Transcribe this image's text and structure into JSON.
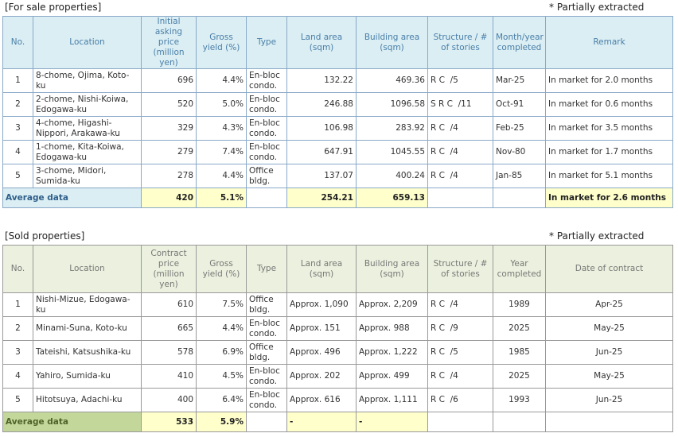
{
  "for_sale": {
    "label": "[For sale properties]",
    "note": "* Partially extracted",
    "headers": [
      "No.",
      "Location",
      "Initial asking price (million yen)",
      "Gross yield (%)",
      "Type",
      "Land area (sqm)",
      "Building area (sqm)",
      "Structure / # of stories",
      "Month/year completed",
      "Remark"
    ],
    "rows": [
      [
        "1",
        "8-chome, Ojima, Koto-ku",
        "696",
        "4.4%",
        "En-bloc condo.",
        "132.22",
        "469.36",
        "R C  /5",
        "Mar-25",
        "In market for 2.0 months"
      ],
      [
        "2",
        "2-chome, Nishi-Koiwa, Edogawa-ku",
        "520",
        "5.0%",
        "En-bloc condo.",
        "246.88",
        "1096.58",
        "S R C  /11",
        "Oct-91",
        "In market for 0.6 months"
      ],
      [
        "3",
        "4-chome, Higashi-Nippori, Arakawa-ku",
        "329",
        "4.3%",
        "En-bloc condo.",
        "106.98",
        "283.92",
        "R C  /4",
        "Feb-25",
        "In market for 3.5 months"
      ],
      [
        "4",
        "1-chome, Kita-Koiwa, Edogawa-ku",
        "279",
        "7.4%",
        "En-bloc condo.",
        "647.91",
        "1045.55",
        "R C  /4",
        "Nov-80",
        "In market for 1.7 months"
      ],
      [
        "5",
        "3-chome, Midori, Sumida-ku",
        "278",
        "4.4%",
        "Office bldg.",
        "137.07",
        "400.24",
        "R C  /4",
        "Jan-85",
        "In market for 5.1 months"
      ]
    ],
    "average": {
      "label": "Average data",
      "price": "420",
      "yield": "5.1%",
      "land": "254.21",
      "building": "659.13",
      "remark": "In market for 2.6 months"
    }
  },
  "sold": {
    "label": "[Sold properties]",
    "note": "* Partially extracted",
    "headers": [
      "No.",
      "Location",
      "Contract price (million yen)",
      "Gross yield (%)",
      "Type",
      "Land area (sqm)",
      "Building area (sqm)",
      "Structure / # of stories",
      "Year completed",
      "Date of contract"
    ],
    "rows": [
      [
        "1",
        "Nishi-Mizue, Edogawa-ku",
        "610",
        "7.5%",
        "Office bldg.",
        "Approx. 1,090",
        "Approx. 2,209",
        "R C  /4",
        "1989",
        "Apr-25"
      ],
      [
        "2",
        "Minami-Suna, Koto-ku",
        "665",
        "4.4%",
        "En-bloc condo.",
        "Approx. 151",
        "Approx. 988",
        "R C  /9",
        "2025",
        "May-25"
      ],
      [
        "3",
        "Tateishi, Katsushika-ku",
        "578",
        "6.9%",
        "Office bldg.",
        "Approx. 496",
        "Approx. 1,222",
        "R C  /5",
        "1985",
        "Jun-25"
      ],
      [
        "4",
        "Yahiro, Sumida-ku",
        "410",
        "4.5%",
        "En-bloc condo.",
        "Approx. 202",
        "Approx. 499",
        "R C  /4",
        "2025",
        "May-25"
      ],
      [
        "5",
        "Hitotsuya, Adachi-ku",
        "400",
        "6.4%",
        "En-bloc condo.",
        "Approx. 616",
        "Approx. 1,111",
        "R C  /6",
        "1993",
        "Jun-25"
      ]
    ],
    "average": {
      "label": "Average data",
      "price": "533",
      "yield": "5.9%",
      "land": "-",
      "building": "-"
    }
  }
}
